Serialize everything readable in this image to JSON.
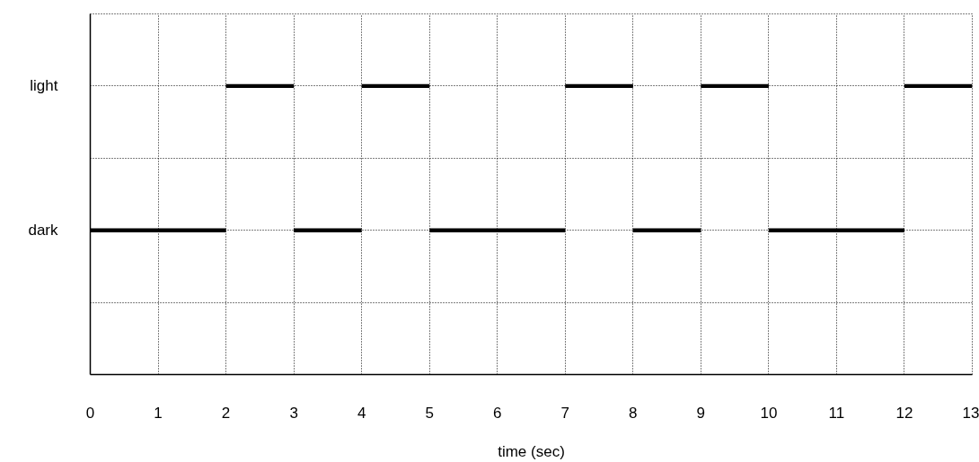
{
  "chart_data": {
    "type": "bar",
    "orientation": "horizontal",
    "xlabel": "time (sec)",
    "categories": [
      "light",
      null,
      "dark",
      null
    ],
    "series": [
      {
        "color": "#000000",
        "base": [
          2,
          null,
          0,
          null
        ],
        "values": [
          1,
          null,
          2,
          null
        ]
      },
      {
        "color": "#000000",
        "base": [
          4,
          null,
          3,
          null
        ],
        "values": [
          1,
          null,
          1,
          null
        ]
      },
      {
        "color": "#000000",
        "base": [
          7,
          null,
          5,
          null
        ],
        "values": [
          1,
          null,
          2,
          null
        ]
      },
      {
        "color": "#000000",
        "base": [
          9,
          null,
          8,
          null
        ],
        "values": [
          1,
          null,
          1,
          null
        ]
      },
      {
        "color": "#000000",
        "base": [
          12,
          null,
          10,
          null
        ],
        "values": [
          1,
          null,
          2,
          null
        ]
      }
    ],
    "xlim": [
      0,
      13
    ],
    "xticks": [
      0,
      1,
      2,
      3,
      4,
      5,
      6,
      7,
      8,
      9,
      10,
      11,
      12,
      13
    ],
    "grid": true
  }
}
